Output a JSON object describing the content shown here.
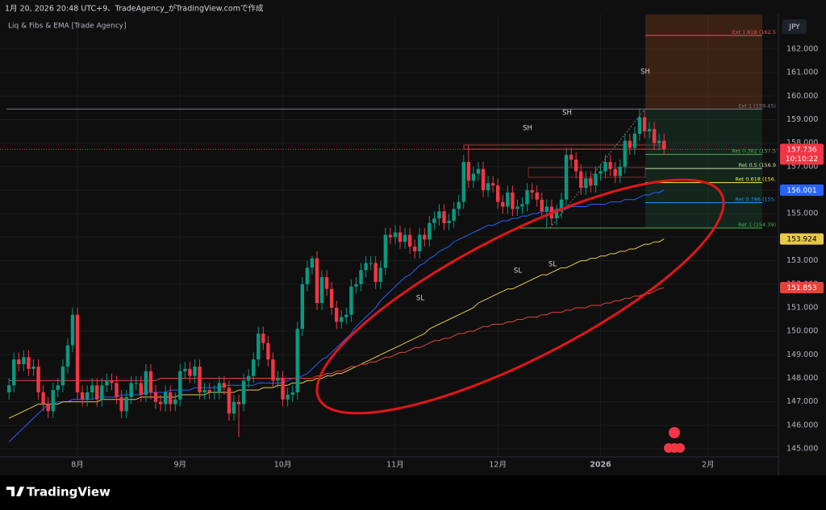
{
  "chart_data": {
    "type": "candlestick",
    "header": "1月 20, 2026 20:48 UTC+9、TradeAgency_がTradingView.comで作成",
    "indicator": "Liq & Fibs & EMA [Trade Agency]",
    "currency": "JPY",
    "countdown": "10:10:22",
    "logo": "TradingView",
    "up_color": "#089981",
    "down_color": "#f23645",
    "grid": true,
    "ylim": [
      143.94,
      163.47
    ],
    "yticks": [
      {
        "value": 145,
        "label": "145.000"
      },
      {
        "value": 146,
        "label": "146.000"
      },
      {
        "value": 147,
        "label": "147.000"
      },
      {
        "value": 148,
        "label": "148.000"
      },
      {
        "value": 149,
        "label": "149.000"
      },
      {
        "value": 150,
        "label": "150.000"
      },
      {
        "value": 151,
        "label": "151.000"
      },
      {
        "value": 152,
        "label": "152.000"
      },
      {
        "value": 153,
        "label": "153.000"
      },
      {
        "value": 154,
        "label": "154.000"
      },
      {
        "value": 155,
        "label": "155.000"
      },
      {
        "value": 156,
        "label": "156.000"
      },
      {
        "value": 157,
        "label": "157.000"
      },
      {
        "value": 158,
        "label": "158.000"
      },
      {
        "value": 159,
        "label": "159.000"
      },
      {
        "value": 160,
        "label": "160.000"
      },
      {
        "value": 161,
        "label": "161.000"
      },
      {
        "value": 162,
        "label": "162.000"
      }
    ],
    "categories": [
      null,
      null,
      null,
      null,
      null,
      null,
      null,
      null,
      null,
      null,
      null,
      null,
      null,
      null,
      "8月",
      null,
      null,
      null,
      null,
      null,
      null,
      null,
      null,
      null,
      null,
      null,
      null,
      null,
      null,
      null,
      null,
      null,
      null,
      null,
      null,
      "9月",
      null,
      null,
      null,
      null,
      null,
      null,
      null,
      null,
      null,
      null,
      null,
      null,
      null,
      null,
      null,
      null,
      null,
      null,
      null,
      null,
      "10月",
      null,
      null,
      null,
      null,
      null,
      null,
      null,
      null,
      null,
      null,
      null,
      null,
      null,
      null,
      null,
      null,
      null,
      null,
      null,
      null,
      null,
      null,
      "11月",
      null,
      null,
      null,
      null,
      null,
      null,
      null,
      null,
      null,
      null,
      null,
      null,
      null,
      null,
      null,
      null,
      null,
      null,
      null,
      null,
      "12月",
      null,
      null,
      null,
      null,
      null,
      null,
      null,
      null,
      null,
      null,
      null,
      null,
      null,
      null,
      null,
      null,
      null,
      null,
      null,
      null,
      "2026",
      null,
      null,
      null,
      null,
      null,
      null,
      null,
      null,
      null,
      null,
      null,
      null,
      null,
      null,
      null,
      null,
      null,
      null,
      null,
      null,
      null,
      "2月"
    ],
    "open": [
      147.4,
      147.7,
      148.8,
      148.6,
      148.9,
      148.4,
      148.5,
      147.4,
      146.9,
      146.6,
      147.5,
      147.7,
      148.5,
      149.4,
      150.7,
      147.4,
      147.1,
      147.4,
      147.7,
      147.1,
      147.7,
      147.9,
      147.8,
      147.2,
      146.6,
      147.2,
      147.8,
      147.8,
      147.3,
      148.3,
      147.4,
      147.0,
      146.9,
      147.4,
      146.9,
      147.1,
      148.3,
      148.4,
      148.1,
      148.5,
      147.4,
      147.5,
      147.4,
      147.4,
      147.8,
      147.6,
      146.5,
      147.0,
      146.9,
      147.9,
      148.1,
      148.8,
      149.9,
      149.5,
      148.8,
      147.9,
      148.0,
      147.1,
      147.3,
      147.4,
      150.1,
      152.0,
      152.7,
      153.1,
      151.2,
      152.3,
      151.8,
      151.0,
      150.4,
      150.6,
      150.7,
      151.9,
      152.0,
      152.6,
      152.9,
      152.9,
      152.1,
      152.7,
      154.1,
      154.0,
      154.2,
      153.8,
      154.1,
      153.6,
      153.4,
      154.1,
      153.9,
      154.6,
      154.8,
      155.1,
      154.6,
      154.7,
      155.2,
      155.5,
      157.2,
      156.4,
      156.7,
      156.9,
      156.0,
      156.3,
      156.2,
      155.5,
      155.3,
      155.9,
      155.2,
      155.3,
      155.4,
      156.0,
      155.9,
      155.6,
      155.1,
      155.3,
      154.8,
      155.1,
      155.6,
      157.5,
      157.3,
      156.8,
      156.1,
      156.5,
      156.2,
      156.7,
      156.8,
      157.2,
      156.9,
      156.6,
      157.0,
      158.1,
      157.8,
      158.4,
      159.1,
      158.5,
      158.6,
      158.0,
      158.1,
      null,
      null,
      null,
      null,
      null,
      null,
      null,
      null,
      null
    ],
    "high": [
      148.0,
      149.1,
      149.1,
      149.2,
      149.2,
      148.8,
      148.8,
      147.7,
      147.2,
      147.8,
      148.0,
      148.8,
      149.7,
      151.0,
      151.0,
      147.7,
      147.7,
      148.0,
      148.0,
      148.0,
      148.2,
      148.2,
      148.1,
      147.5,
      147.5,
      148.1,
      148.1,
      148.1,
      148.6,
      148.6,
      147.7,
      147.3,
      147.7,
      147.7,
      147.4,
      148.6,
      148.7,
      148.7,
      148.8,
      148.8,
      147.8,
      147.8,
      147.7,
      148.1,
      148.1,
      147.9,
      147.3,
      147.3,
      148.2,
      148.4,
      149.1,
      150.2,
      150.2,
      149.8,
      149.1,
      148.3,
      148.3,
      147.6,
      147.7,
      150.4,
      152.3,
      153.0,
      153.2,
      153.4,
      152.6,
      152.6,
      152.1,
      151.3,
      150.9,
      151.0,
      152.2,
      152.3,
      152.9,
      153.2,
      153.2,
      153.2,
      153.0,
      154.4,
      154.4,
      154.5,
      154.5,
      154.4,
      154.4,
      153.9,
      154.4,
      154.4,
      154.9,
      155.1,
      155.4,
      155.4,
      155.0,
      155.5,
      155.8,
      157.5,
      157.9,
      157.0,
      157.2,
      157.2,
      156.6,
      156.6,
      156.5,
      155.8,
      156.2,
      156.2,
      155.6,
      155.7,
      156.3,
      156.3,
      156.2,
      155.9,
      155.6,
      155.6,
      155.4,
      155.9,
      157.8,
      157.8,
      157.6,
      157.1,
      156.8,
      156.8,
      157.0,
      157.1,
      157.5,
      157.5,
      157.2,
      157.3,
      158.4,
      158.4,
      158.7,
      159.45,
      159.4,
      158.9,
      158.9,
      158.4,
      158.4,
      null,
      null,
      null,
      null,
      null,
      null,
      null,
      null,
      null
    ],
    "low": [
      147.1,
      147.4,
      148.3,
      148.3,
      148.1,
      148.1,
      147.1,
      146.6,
      146.3,
      146.3,
      147.2,
      147.4,
      148.2,
      149.1,
      147.1,
      146.8,
      146.8,
      147.1,
      146.8,
      146.8,
      147.4,
      147.5,
      146.9,
      146.3,
      146.3,
      146.9,
      147.5,
      147.0,
      147.0,
      147.1,
      146.7,
      146.6,
      146.6,
      146.6,
      146.6,
      146.8,
      148.0,
      147.8,
      147.8,
      147.1,
      147.1,
      147.1,
      147.1,
      147.1,
      147.3,
      146.2,
      146.2,
      145.5,
      146.6,
      147.6,
      147.8,
      148.5,
      149.2,
      148.5,
      147.6,
      147.6,
      146.8,
      146.8,
      147.0,
      147.1,
      149.8,
      151.7,
      152.4,
      150.9,
      150.9,
      151.5,
      150.7,
      150.1,
      150.1,
      150.3,
      150.4,
      151.6,
      151.7,
      152.3,
      152.6,
      151.8,
      151.8,
      152.4,
      153.7,
      153.7,
      153.5,
      153.5,
      153.3,
      153.1,
      153.1,
      153.6,
      153.6,
      154.3,
      154.5,
      154.3,
      154.3,
      154.4,
      154.9,
      155.2,
      156.1,
      156.1,
      156.4,
      155.7,
      155.7,
      155.9,
      155.2,
      155.0,
      155.0,
      154.9,
      154.9,
      155.0,
      155.1,
      155.6,
      155.3,
      154.8,
      154.39,
      154.5,
      154.5,
      154.8,
      155.3,
      157.0,
      156.5,
      155.8,
      155.8,
      155.9,
      155.9,
      156.4,
      156.5,
      156.6,
      156.3,
      156.3,
      156.7,
      157.5,
      157.5,
      158.1,
      158.2,
      158.2,
      157.7,
      157.7,
      157.5,
      null,
      null,
      null,
      null,
      null,
      null,
      null,
      null,
      null
    ],
    "close": [
      147.7,
      148.8,
      148.6,
      148.9,
      148.4,
      148.5,
      147.4,
      146.9,
      146.6,
      147.5,
      147.7,
      148.5,
      149.4,
      150.7,
      147.4,
      147.1,
      147.4,
      147.7,
      147.1,
      147.7,
      147.9,
      147.8,
      147.2,
      146.6,
      147.2,
      147.8,
      147.8,
      147.3,
      148.3,
      147.4,
      147.0,
      146.9,
      147.4,
      146.9,
      147.1,
      148.3,
      148.4,
      148.1,
      148.5,
      147.4,
      147.5,
      147.4,
      147.4,
      147.8,
      147.6,
      146.5,
      147.0,
      146.9,
      147.9,
      148.1,
      148.8,
      149.9,
      149.5,
      148.8,
      147.9,
      148.0,
      147.1,
      147.3,
      147.4,
      150.1,
      152.0,
      152.7,
      153.1,
      151.2,
      152.3,
      151.8,
      151.0,
      150.4,
      150.6,
      150.7,
      151.9,
      152.0,
      152.6,
      152.9,
      152.9,
      152.1,
      152.7,
      154.1,
      154.0,
      154.2,
      153.8,
      154.1,
      153.6,
      153.4,
      154.1,
      153.9,
      154.6,
      154.8,
      155.1,
      154.6,
      154.7,
      155.2,
      155.5,
      157.2,
      156.4,
      156.7,
      156.9,
      156.0,
      156.3,
      156.2,
      155.5,
      155.3,
      155.9,
      155.2,
      155.3,
      155.4,
      156.0,
      155.9,
      155.6,
      155.1,
      155.3,
      154.8,
      155.1,
      155.6,
      157.5,
      157.3,
      156.8,
      156.1,
      156.5,
      156.2,
      156.7,
      156.8,
      157.2,
      156.9,
      156.6,
      157.0,
      158.1,
      157.8,
      158.4,
      159.1,
      158.5,
      158.6,
      158.0,
      158.1,
      157.736,
      null,
      null,
      null,
      null,
      null,
      null,
      null,
      null,
      null
    ],
    "series": [
      {
        "color": "#2962ff",
        "values": [
          145.3,
          145.5,
          145.7,
          145.9,
          146.1,
          146.3,
          146.5,
          146.7,
          146.9,
          146.9,
          147.0,
          147.0,
          147.0,
          147.1,
          147.1,
          147.1,
          147.1,
          147.1,
          147.2,
          147.2,
          147.2,
          147.2,
          147.2,
          147.3,
          147.3,
          147.3,
          147.3,
          147.3,
          147.4,
          147.4,
          147.4,
          147.4,
          147.4,
          147.5,
          147.5,
          147.5,
          147.5,
          147.5,
          147.6,
          147.6,
          147.6,
          147.6,
          147.6,
          147.6,
          147.7,
          147.7,
          147.7,
          147.7,
          147.7,
          147.7,
          147.7,
          147.8,
          147.8,
          147.8,
          147.8,
          147.8,
          147.8,
          147.9,
          148.0,
          148.0,
          148.1,
          148.2,
          148.4,
          148.6,
          148.8,
          148.9,
          149.1,
          149.3,
          149.5,
          149.7,
          149.9,
          150.2,
          150.4,
          150.6,
          150.8,
          151.0,
          151.3,
          151.5,
          151.7,
          151.9,
          152.1,
          152.3,
          152.4,
          152.6,
          152.8,
          152.9,
          153.1,
          153.2,
          153.4,
          153.5,
          153.6,
          153.8,
          153.9,
          154.0,
          154.1,
          154.2,
          154.3,
          154.4,
          154.5,
          154.5,
          154.6,
          154.7,
          154.7,
          154.8,
          154.8,
          154.9,
          154.9,
          155.0,
          155.0,
          155.1,
          155.1,
          155.1,
          155.2,
          155.2,
          155.2,
          155.3,
          155.3,
          155.3,
          155.3,
          155.4,
          155.4,
          155.4,
          155.4,
          155.5,
          155.5,
          155.5,
          155.6,
          155.6,
          155.6,
          155.7,
          155.8,
          155.8,
          155.9,
          155.9,
          156.001,
          null,
          null,
          null,
          null,
          null,
          null,
          null,
          null,
          null
        ]
      },
      {
        "color": "#e8c84a",
        "values": [
          146.3,
          146.4,
          146.5,
          146.6,
          146.7,
          146.8,
          146.9,
          146.9,
          146.9,
          146.9,
          146.9,
          147.0,
          147.0,
          147.0,
          147.0,
          147.0,
          147.0,
          147.0,
          147.0,
          147.1,
          147.1,
          147.1,
          147.1,
          147.1,
          147.1,
          147.1,
          147.1,
          147.2,
          147.2,
          147.2,
          147.2,
          147.2,
          147.2,
          147.2,
          147.2,
          147.3,
          147.3,
          147.3,
          147.3,
          147.3,
          147.3,
          147.4,
          147.4,
          147.4,
          147.4,
          147.4,
          147.4,
          147.5,
          147.5,
          147.5,
          147.5,
          147.5,
          147.6,
          147.6,
          147.6,
          147.7,
          147.7,
          147.7,
          147.8,
          147.8,
          147.8,
          147.9,
          147.9,
          148.0,
          148.0,
          148.1,
          148.1,
          148.2,
          148.2,
          148.3,
          148.4,
          148.5,
          148.6,
          148.7,
          148.8,
          148.9,
          149.0,
          149.1,
          149.2,
          149.3,
          149.4,
          149.5,
          149.6,
          149.7,
          149.8,
          149.9,
          150.1,
          150.2,
          150.3,
          150.4,
          150.5,
          150.6,
          150.7,
          150.8,
          150.9,
          151.0,
          151.2,
          151.3,
          151.4,
          151.5,
          151.6,
          151.7,
          151.8,
          151.8,
          151.9,
          152.0,
          152.1,
          152.2,
          152.3,
          152.4,
          152.4,
          152.5,
          152.6,
          152.7,
          152.7,
          152.8,
          152.9,
          153.0,
          153.0,
          153.1,
          153.1,
          153.2,
          153.2,
          153.3,
          153.3,
          153.4,
          153.4,
          153.5,
          153.5,
          153.6,
          153.7,
          153.7,
          153.8,
          153.8,
          153.924,
          null,
          null,
          null,
          null,
          null,
          null,
          null,
          null,
          null
        ]
      },
      {
        "color": "#e0453c",
        "values": [
          147.9,
          147.9,
          147.9,
          147.9,
          147.9,
          147.9,
          147.9,
          147.9,
          147.9,
          147.9,
          147.9,
          147.9,
          147.9,
          147.9,
          147.9,
          147.9,
          147.9,
          147.9,
          147.9,
          147.9,
          147.9,
          147.9,
          147.9,
          147.9,
          147.9,
          147.9,
          147.9,
          147.9,
          147.9,
          147.9,
          147.9,
          148.0,
          148.0,
          148.0,
          148.0,
          148.0,
          148.0,
          148.0,
          148.0,
          148.0,
          148.0,
          148.0,
          148.0,
          148.0,
          148.0,
          148.0,
          148.0,
          148.0,
          148.0,
          148.0,
          148.0,
          148.0,
          148.0,
          148.0,
          148.0,
          148.0,
          148.0,
          148.0,
          148.0,
          148.0,
          148.0,
          148.0,
          148.0,
          148.1,
          148.1,
          148.2,
          148.2,
          148.3,
          148.3,
          148.4,
          148.5,
          148.5,
          148.6,
          148.6,
          148.7,
          148.7,
          148.8,
          148.9,
          148.9,
          149.0,
          149.1,
          149.1,
          149.2,
          149.3,
          149.3,
          149.4,
          149.5,
          149.6,
          149.6,
          149.7,
          149.7,
          149.8,
          149.9,
          149.9,
          150.0,
          150.0,
          150.1,
          150.2,
          150.2,
          150.3,
          150.3,
          150.3,
          150.4,
          150.4,
          150.5,
          150.5,
          150.6,
          150.6,
          150.6,
          150.7,
          150.7,
          150.8,
          150.8,
          150.8,
          150.9,
          150.9,
          151.0,
          151.0,
          151.0,
          151.1,
          151.1,
          151.1,
          151.2,
          151.2,
          151.3,
          151.3,
          151.4,
          151.4,
          151.5,
          151.5,
          151.6,
          151.6,
          151.7,
          151.8,
          151.853,
          null,
          null,
          null,
          null,
          null,
          null,
          null,
          null,
          null
        ]
      }
    ],
    "fib_levels": [
      {
        "label": "Ext 1.618 (162.5",
        "value": 162.58,
        "color": "#f7525f"
      },
      {
        "label": "Ext 1 (159.45)",
        "value": 159.45,
        "color": "#787b86",
        "extend_left": true
      },
      {
        "label": "Ret 0.382 (157.5",
        "value": 157.52,
        "color": "#4caf50"
      },
      {
        "label": "Ret 0.5 (156.9",
        "value": 156.92,
        "color": "#c5e1a5"
      },
      {
        "label": "Ret 0.618 (156.",
        "value": 156.32,
        "color": "#ffeb3b"
      },
      {
        "label": "Ret 0.786 (155.",
        "value": 155.47,
        "color": "#2196f3"
      },
      {
        "label": "Ret 1 (154.39)",
        "value": 154.39,
        "color": "#4caf50"
      }
    ],
    "annotations": [
      "SH",
      "SH",
      "SH",
      "SL",
      "SL",
      "SL"
    ]
  }
}
